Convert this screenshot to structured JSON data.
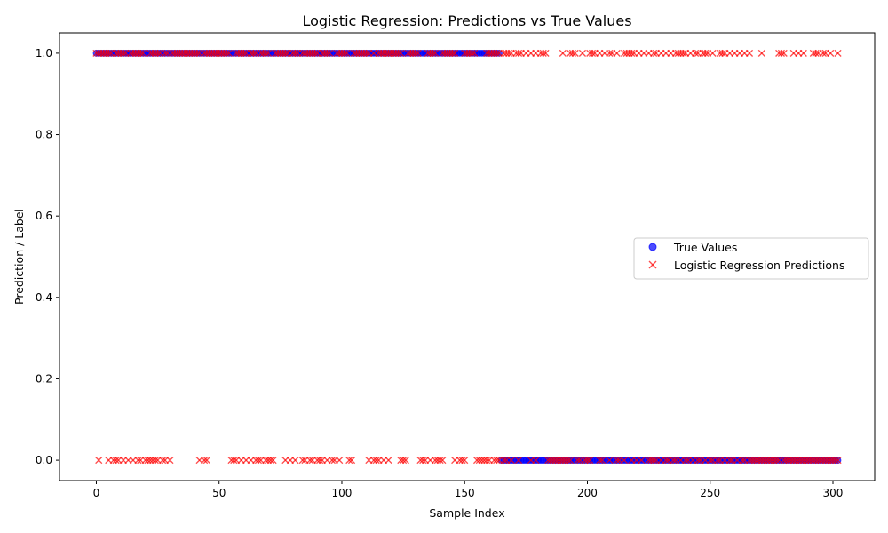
{
  "chart_data": {
    "type": "scatter",
    "title": "Logistic Regression: Predictions vs True Values",
    "xlabel": "Sample Index",
    "ylabel": "Prediction / Label",
    "xlim": [
      -15,
      317
    ],
    "ylim": [
      -0.05,
      1.05
    ],
    "xticks": [
      "0",
      "50",
      "100",
      "150",
      "200",
      "250",
      "300"
    ],
    "yticks": [
      "0.0",
      "0.2",
      "0.4",
      "0.6",
      "0.8",
      "1.0"
    ],
    "grid": false,
    "legend_position": "center-right",
    "series": [
      {
        "name": "True Values",
        "marker": "circle",
        "color": "#0000ff",
        "segments": [
          {
            "x_start": 0,
            "x_end": 164,
            "y": 1
          },
          {
            "x_start": 165,
            "x_end": 302,
            "y": 0
          }
        ]
      },
      {
        "name": "Logistic Regression Predictions",
        "marker": "x",
        "color": "#ff0000",
        "value1_x": [
          0,
          1,
          2,
          3,
          4,
          5,
          6,
          8,
          9,
          10,
          11,
          12,
          14,
          15,
          16,
          17,
          18,
          19,
          22,
          23,
          24,
          25,
          26,
          28,
          29,
          31,
          32,
          33,
          34,
          35,
          36,
          37,
          38,
          39,
          40,
          41,
          42,
          44,
          45,
          46,
          47,
          48,
          49,
          50,
          51,
          52,
          53,
          54,
          57,
          58,
          59,
          60,
          61,
          63,
          64,
          65,
          67,
          68,
          69,
          70,
          73,
          74,
          75,
          76,
          77,
          78,
          80,
          81,
          82,
          84,
          85,
          86,
          87,
          88,
          89,
          90,
          92,
          93,
          94,
          95,
          98,
          99,
          100,
          101,
          102,
          105,
          106,
          107,
          108,
          109,
          110,
          111,
          113,
          115,
          116,
          117,
          118,
          119,
          120,
          121,
          122,
          123,
          124,
          127,
          128,
          129,
          130,
          131,
          135,
          136,
          137,
          138,
          141,
          142,
          143,
          144,
          145,
          146,
          150,
          151,
          152,
          153,
          154,
          159,
          160,
          161,
          162,
          163,
          164,
          166,
          167,
          168,
          169,
          171,
          172,
          173,
          175,
          177,
          179,
          181,
          182,
          183,
          190,
          193,
          194,
          195,
          198,
          201,
          202,
          203,
          205,
          207,
          209,
          210,
          212,
          215,
          216,
          217,
          218,
          219,
          221,
          223,
          225,
          227,
          228,
          230,
          232,
          234,
          236,
          237,
          238,
          239,
          240,
          242,
          244,
          245,
          247,
          248,
          249,
          251,
          254,
          255,
          256,
          258,
          260,
          262,
          264,
          266,
          271,
          278,
          279,
          280,
          284,
          286,
          288,
          292,
          293,
          294,
          296,
          297,
          299,
          302
        ],
        "value0_x": [
          1,
          5,
          7,
          8,
          9,
          11,
          13,
          15,
          17,
          18,
          20,
          21,
          22,
          23,
          24,
          25,
          27,
          28,
          30,
          42,
          44,
          45,
          55,
          56,
          57,
          59,
          61,
          63,
          65,
          66,
          67,
          69,
          70,
          71,
          72,
          77,
          79,
          81,
          84,
          85,
          87,
          88,
          90,
          91,
          92,
          94,
          96,
          97,
          99,
          103,
          104,
          111,
          113,
          114,
          115,
          117,
          119,
          124,
          125,
          126,
          132,
          133,
          134,
          136,
          138,
          139,
          140,
          141,
          146,
          148,
          149,
          150,
          155,
          156,
          157,
          158,
          159,
          160,
          162,
          163,
          164,
          166,
          167,
          169,
          172,
          177,
          179,
          184,
          185,
          186,
          187,
          188,
          189,
          190,
          191,
          192,
          193,
          196,
          197,
          199,
          200,
          201,
          205,
          206,
          209,
          212,
          213,
          215,
          218,
          220,
          222,
          225,
          226,
          227,
          228,
          230,
          232,
          233,
          235,
          236,
          238,
          240,
          241,
          243,
          245,
          246,
          248,
          250,
          251,
          253,
          254,
          256,
          258,
          259,
          261,
          263,
          264,
          266,
          267,
          268,
          269,
          270,
          271,
          272,
          273,
          274,
          275,
          276,
          277,
          278,
          280,
          281,
          282,
          283,
          284,
          285,
          286,
          287,
          288,
          289,
          290,
          291,
          292,
          293,
          294,
          295,
          296,
          297,
          298,
          299,
          300,
          301,
          302
        ]
      }
    ]
  }
}
